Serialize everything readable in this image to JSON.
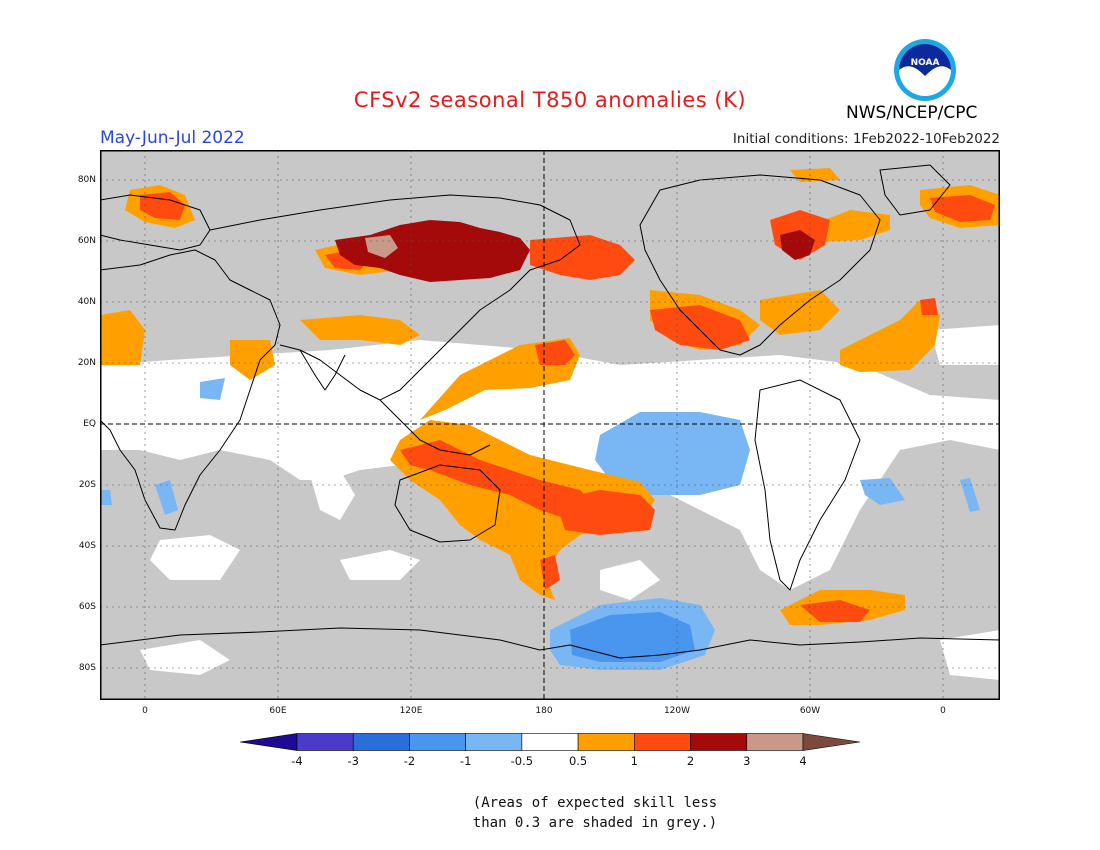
{
  "title": "CFSv2 seasonal T850 anomalies (K)",
  "season": "May-Jun-Jul 2022",
  "initial_conditions": "Initial conditions: 1Feb2022-10Feb2022",
  "agency": "NWS/NCEP/CPC",
  "logo_text": "NOAA",
  "x_ticks": [
    "0",
    "60E",
    "120E",
    "180",
    "120W",
    "60W",
    "0"
  ],
  "y_ticks": [
    "80N",
    "60N",
    "40N",
    "20N",
    "EQ",
    "20S",
    "40S",
    "60S",
    "80S"
  ],
  "colorbar": {
    "labels": [
      "-4",
      "-3",
      "-2",
      "-1",
      "-0.5",
      "0.5",
      "1",
      "2",
      "3",
      "4"
    ],
    "colors": [
      "#1e0a94",
      "#4a3cc8",
      "#2a6edc",
      "#4a96ee",
      "#78b6f4",
      "#ffffff",
      "#ffa000",
      "#ff4a10",
      "#a40a0a",
      "#c89888",
      "#7a4a3c"
    ]
  },
  "note_line1": "(Areas of expected skill less",
  "note_line2": "than 0.3 are shaded in grey.)",
  "colors": {
    "grey_mask": "#c8c8c8",
    "anomaly_05_1": "#ffa000",
    "anomaly_1_2": "#ff4a10",
    "anomaly_2_3": "#a40a0a",
    "anomaly_3_4": "#c89888",
    "anomaly_neg05_neg1": "#78b6f4",
    "anomaly_neg1_neg2": "#4a96ee"
  }
}
